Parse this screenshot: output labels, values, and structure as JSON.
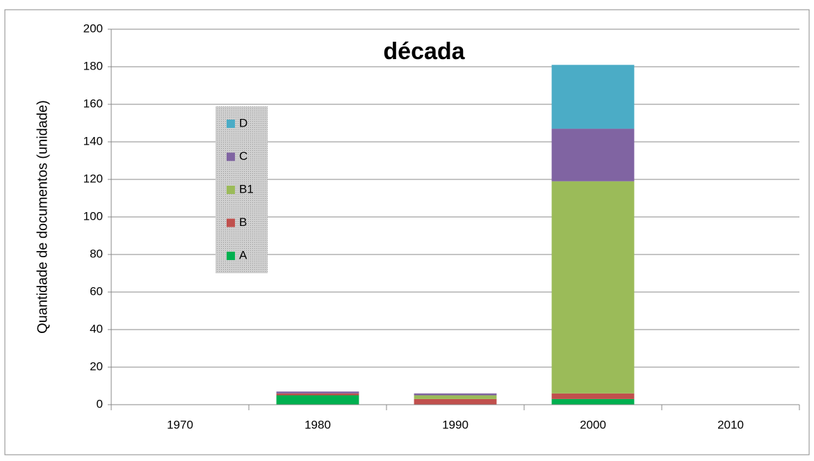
{
  "chart_data": {
    "type": "stacked_bar",
    "title": "década",
    "y_label": "Quantidade de documentos (unidade)",
    "categories": [
      "1970",
      "1980",
      "1990",
      "2000",
      "2010"
    ],
    "series": [
      {
        "name": "A",
        "color": "#00b050",
        "values": [
          0,
          5,
          0,
          3,
          0
        ]
      },
      {
        "name": "B",
        "color": "#c0504d",
        "values": [
          0,
          1,
          3,
          3,
          0
        ]
      },
      {
        "name": "B1",
        "color": "#9bbb59",
        "values": [
          0,
          0,
          2,
          113,
          0
        ]
      },
      {
        "name": "C",
        "color": "#8064a2",
        "values": [
          0,
          1,
          1,
          28,
          0
        ]
      },
      {
        "name": "D",
        "color": "#4bacc6",
        "values": [
          0,
          0,
          0,
          34,
          0
        ]
      }
    ],
    "ylim": [
      0,
      200
    ],
    "yticks": [
      0,
      20,
      40,
      60,
      80,
      100,
      120,
      140,
      160,
      180,
      200
    ],
    "grid": true,
    "legend": "left"
  }
}
